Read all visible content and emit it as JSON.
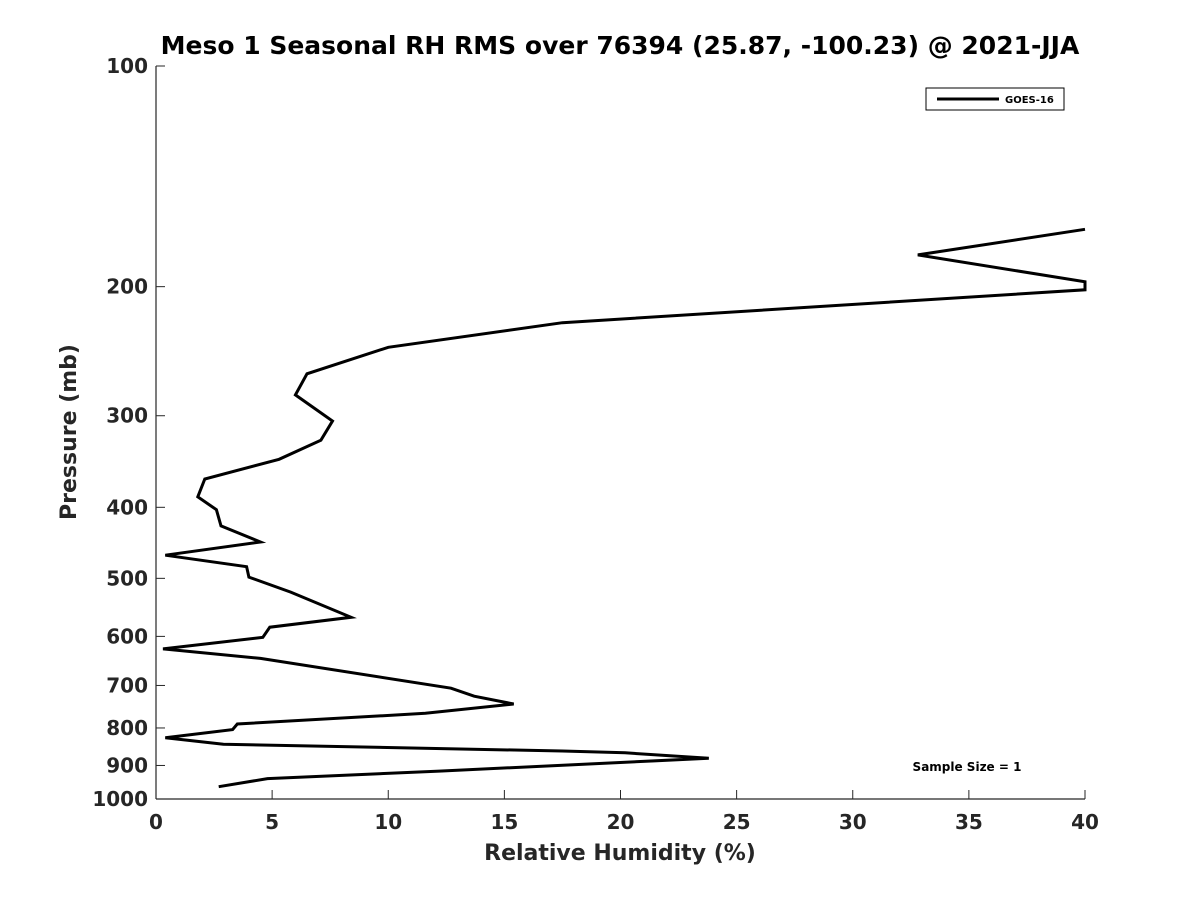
{
  "chart_data": {
    "type": "line",
    "title": "Meso 1 Seasonal RH RMS over 76394 (25.87, -100.23) @ 2021-JJA",
    "xlabel": "Relative Humidity (%)",
    "ylabel": "Pressure (mb)",
    "xlim": [
      0,
      40
    ],
    "ylim": [
      100,
      1000
    ],
    "y_scale": "log",
    "y_reversed": true,
    "xticks": [
      "0",
      "5",
      "10",
      "15",
      "20",
      "25",
      "30",
      "35",
      "40"
    ],
    "yticks": [
      "100",
      "200",
      "300",
      "400",
      "500",
      "600",
      "700",
      "800",
      "900",
      "1000"
    ],
    "grid": false,
    "legend_position": "top-right",
    "annotation": "Sample Size = 1",
    "series": [
      {
        "name": "GOES-16",
        "color": "#000000",
        "points": [
          [
            2.7,
            962
          ],
          [
            4.8,
            938
          ],
          [
            12.2,
            916
          ],
          [
            23.8,
            880
          ],
          [
            20.2,
            865
          ],
          [
            17.5,
            860
          ],
          [
            2.9,
            842
          ],
          [
            0.4,
            825
          ],
          [
            3.3,
            804
          ],
          [
            3.5,
            790
          ],
          [
            11.6,
            764
          ],
          [
            15.4,
            742
          ],
          [
            13.7,
            724
          ],
          [
            12.7,
            706
          ],
          [
            4.5,
            643
          ],
          [
            0.3,
            624
          ],
          [
            4.6,
            602
          ],
          [
            4.9,
            583
          ],
          [
            8.4,
            565
          ],
          [
            5.8,
            522
          ],
          [
            4.0,
            498
          ],
          [
            3.9,
            482
          ],
          [
            0.4,
            465
          ],
          [
            4.5,
            446
          ],
          [
            2.8,
            424
          ],
          [
            2.6,
            403
          ],
          [
            1.8,
            387
          ],
          [
            2.1,
            366
          ],
          [
            5.3,
            344
          ],
          [
            7.1,
            324
          ],
          [
            7.6,
            305
          ],
          [
            6.0,
            281
          ],
          [
            6.5,
            263
          ],
          [
            10.0,
            242
          ],
          [
            17.5,
            224
          ],
          [
            40,
            202
          ],
          [
            40,
            197
          ],
          [
            32.8,
            181
          ],
          [
            40,
            167
          ]
        ]
      }
    ]
  }
}
